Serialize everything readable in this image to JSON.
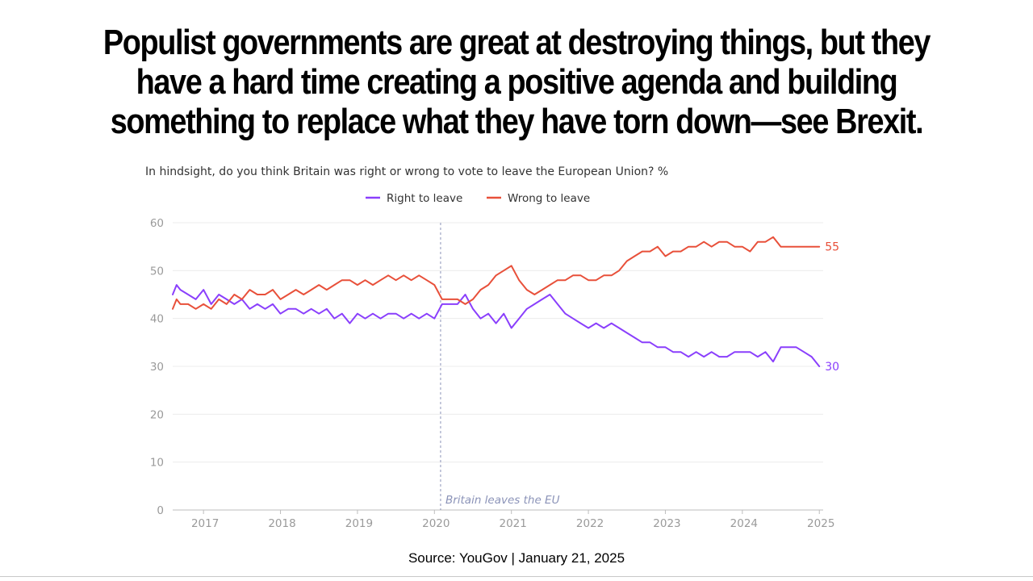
{
  "headline": {
    "line1": "Populist governments are great at destroying things, but they",
    "line2": "have a hard time creating a positive agenda and building",
    "line3": "something to replace what they have torn down—see Brexit."
  },
  "source": "Source: YouGov | January 21, 2025",
  "colors": {
    "right": "#8a3ffc",
    "wrong": "#e8503a",
    "grid": "#ececec",
    "annotation": "#8b93b8"
  },
  "chart_data": {
    "type": "line",
    "title": "In hindsight, do you think Britain was right or wrong to vote to leave the European Union? %",
    "xlabel": "",
    "ylabel": "",
    "ylim": [
      0,
      60
    ],
    "yticks": [
      0,
      10,
      20,
      30,
      40,
      50,
      60
    ],
    "xlim": [
      2016.6,
      2025.05
    ],
    "xticks": [
      2017,
      2018,
      2019,
      2020,
      2021,
      2022,
      2023,
      2024,
      2025
    ],
    "grid": true,
    "legend_position": "top-center",
    "series": [
      {
        "name": "Right to leave",
        "color": "#8a3ffc",
        "end_label": "30",
        "x": [
          2016.6,
          2016.65,
          2016.7,
          2016.8,
          2016.9,
          2017.0,
          2017.1,
          2017.2,
          2017.3,
          2017.4,
          2017.5,
          2017.6,
          2017.7,
          2017.8,
          2017.9,
          2018.0,
          2018.1,
          2018.2,
          2018.3,
          2018.4,
          2018.5,
          2018.6,
          2018.7,
          2018.8,
          2018.9,
          2019.0,
          2019.1,
          2019.2,
          2019.3,
          2019.4,
          2019.5,
          2019.6,
          2019.7,
          2019.8,
          2019.9,
          2020.0,
          2020.1,
          2020.2,
          2020.3,
          2020.4,
          2020.5,
          2020.6,
          2020.7,
          2020.8,
          2020.9,
          2021.0,
          2021.1,
          2021.2,
          2021.3,
          2021.4,
          2021.5,
          2021.6,
          2021.7,
          2021.8,
          2021.9,
          2022.0,
          2022.1,
          2022.2,
          2022.3,
          2022.4,
          2022.5,
          2022.6,
          2022.7,
          2022.8,
          2022.9,
          2023.0,
          2023.1,
          2023.2,
          2023.3,
          2023.4,
          2023.5,
          2023.6,
          2023.7,
          2023.8,
          2023.9,
          2024.0,
          2024.1,
          2024.2,
          2024.3,
          2024.4,
          2024.5,
          2024.6,
          2024.7,
          2024.8,
          2024.9,
          2025.0
        ],
        "values": [
          45,
          47,
          46,
          45,
          44,
          46,
          43,
          45,
          44,
          43,
          44,
          42,
          43,
          42,
          43,
          41,
          42,
          42,
          41,
          42,
          41,
          42,
          40,
          41,
          39,
          41,
          40,
          41,
          40,
          41,
          41,
          40,
          41,
          40,
          41,
          40,
          43,
          43,
          43,
          45,
          42,
          40,
          41,
          39,
          41,
          38,
          40,
          42,
          43,
          44,
          45,
          43,
          41,
          40,
          39,
          38,
          39,
          38,
          39,
          38,
          37,
          36,
          35,
          35,
          34,
          34,
          33,
          33,
          32,
          33,
          32,
          33,
          32,
          32,
          33,
          33,
          33,
          32,
          33,
          31,
          34,
          34,
          34,
          33,
          32,
          30
        ]
      },
      {
        "name": "Wrong to leave",
        "color": "#e8503a",
        "end_label": "55",
        "x": [
          2016.6,
          2016.65,
          2016.7,
          2016.8,
          2016.9,
          2017.0,
          2017.1,
          2017.2,
          2017.3,
          2017.4,
          2017.5,
          2017.6,
          2017.7,
          2017.8,
          2017.9,
          2018.0,
          2018.1,
          2018.2,
          2018.3,
          2018.4,
          2018.5,
          2018.6,
          2018.7,
          2018.8,
          2018.9,
          2019.0,
          2019.1,
          2019.2,
          2019.3,
          2019.4,
          2019.5,
          2019.6,
          2019.7,
          2019.8,
          2019.9,
          2020.0,
          2020.1,
          2020.2,
          2020.3,
          2020.4,
          2020.5,
          2020.6,
          2020.7,
          2020.8,
          2020.9,
          2021.0,
          2021.1,
          2021.2,
          2021.3,
          2021.4,
          2021.5,
          2021.6,
          2021.7,
          2021.8,
          2021.9,
          2022.0,
          2022.1,
          2022.2,
          2022.3,
          2022.4,
          2022.5,
          2022.6,
          2022.7,
          2022.8,
          2022.9,
          2023.0,
          2023.1,
          2023.2,
          2023.3,
          2023.4,
          2023.5,
          2023.6,
          2023.7,
          2023.8,
          2023.9,
          2024.0,
          2024.1,
          2024.2,
          2024.3,
          2024.4,
          2024.5,
          2024.6,
          2024.7,
          2024.8,
          2024.9,
          2025.0
        ],
        "values": [
          42,
          44,
          43,
          43,
          42,
          43,
          42,
          44,
          43,
          45,
          44,
          46,
          45,
          45,
          46,
          44,
          45,
          46,
          45,
          46,
          47,
          46,
          47,
          48,
          48,
          47,
          48,
          47,
          48,
          49,
          48,
          49,
          48,
          49,
          48,
          47,
          44,
          44,
          44,
          43,
          44,
          46,
          47,
          49,
          50,
          51,
          48,
          46,
          45,
          46,
          47,
          48,
          48,
          49,
          49,
          48,
          48,
          49,
          49,
          50,
          52,
          53,
          54,
          54,
          55,
          53,
          54,
          54,
          55,
          55,
          56,
          55,
          56,
          56,
          55,
          55,
          54,
          56,
          56,
          57,
          55,
          55,
          55,
          55,
          55,
          55
        ]
      }
    ],
    "annotations": [
      {
        "x": 2020.08,
        "label": "Britain leaves the EU"
      }
    ]
  }
}
